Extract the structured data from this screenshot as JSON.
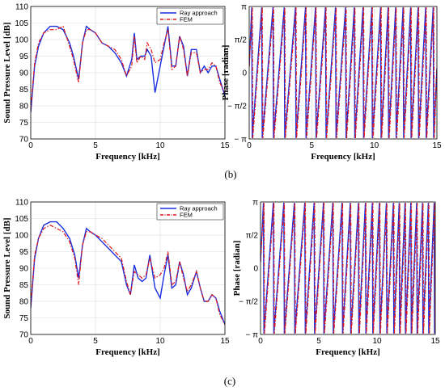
{
  "captions": [
    "(b)",
    "(c)"
  ],
  "colors": {
    "ray": "#1a2fe0",
    "fem": "#e0161a"
  },
  "chart_data": [
    {
      "type": "line",
      "xlabel": "Frequency [kHz]",
      "ylabel": "Sound Pressure Level [dB]",
      "xlim": [
        0,
        15
      ],
      "ylim": [
        70,
        110
      ],
      "xticks": [
        0,
        5,
        10,
        15
      ],
      "yticks": [
        70,
        75,
        80,
        85,
        90,
        95,
        100,
        105,
        110
      ],
      "ytick_labels": [
        "70",
        "75",
        "80",
        "85",
        "90",
        "95",
        "100",
        "105",
        "110"
      ],
      "grid": true,
      "legend": "top-right",
      "series": [
        {
          "name": "Ray approach",
          "style": "solid",
          "x": [
            0,
            0.3,
            0.6,
            1,
            1.5,
            2,
            2.5,
            3,
            3.3,
            3.7,
            4,
            4.3,
            4.6,
            5,
            5.5,
            6,
            6.5,
            7,
            7.4,
            7.8,
            8,
            8.2,
            8.5,
            8.8,
            9,
            9.3,
            9.6,
            10,
            10.3,
            10.6,
            10.9,
            11.2,
            11.5,
            11.8,
            12.1,
            12.4,
            12.8,
            13.1,
            13.4,
            13.7,
            14,
            14.3,
            14.6,
            15
          ],
          "y": [
            78,
            92,
            98,
            102,
            104,
            104,
            103,
            99,
            95,
            88,
            99,
            104,
            103,
            102,
            99,
            98,
            96,
            93,
            89,
            94,
            102,
            94,
            95,
            95,
            97,
            95,
            84,
            92,
            98,
            104,
            92,
            92,
            101,
            98,
            89,
            97,
            97,
            90,
            92,
            90,
            92,
            92,
            88,
            83
          ]
        },
        {
          "name": "FEM",
          "style": "dashdot",
          "x": [
            0,
            0.3,
            0.6,
            1,
            1.5,
            2,
            2.5,
            3,
            3.3,
            3.7,
            4,
            4.3,
            4.6,
            5,
            5.5,
            6,
            6.5,
            7,
            7.4,
            7.8,
            8,
            8.2,
            8.5,
            8.8,
            9,
            9.3,
            9.6,
            10,
            10.3,
            10.6,
            10.9,
            11.2,
            11.5,
            11.8,
            12.1,
            12.4,
            12.8,
            13.1,
            13.4,
            13.7,
            14,
            14.3,
            14.6,
            15
          ],
          "y": [
            79,
            93,
            99,
            102,
            103,
            103,
            104,
            98,
            94,
            87,
            99,
            103,
            103,
            102,
            99,
            98,
            97,
            94,
            89,
            92,
            101,
            93,
            95,
            94,
            99,
            97,
            93,
            94,
            99,
            103,
            91,
            92,
            101,
            97,
            89,
            96,
            96,
            90,
            91,
            91,
            93,
            92,
            87,
            84
          ]
        }
      ]
    },
    {
      "type": "line",
      "xlabel": "Frequency [kHz]",
      "ylabel": "Phase [radian]",
      "xlim": [
        0,
        15
      ],
      "ylim": [
        -3.1416,
        3.1416
      ],
      "xticks": [
        0,
        5,
        10,
        15
      ],
      "yticks": [
        -3.1416,
        -1.5708,
        0,
        1.5708,
        3.1416
      ],
      "ytick_labels": [
        "− π",
        "− π/2",
        "0",
        "π/2",
        "π"
      ],
      "grid": true,
      "legend": "none",
      "series": [
        {
          "name": "Ray approach",
          "style": "solid",
          "wrap_x": [
            0.2,
            1.0,
            1.9,
            2.8,
            3.7,
            4.5,
            5.3,
            6.1,
            6.9,
            7.7,
            8.4,
            9.1,
            9.8,
            10.5,
            11.1,
            11.7,
            12.3,
            12.9,
            13.5,
            14.1,
            14.7
          ]
        },
        {
          "name": "FEM",
          "style": "dashdot",
          "wrap_x": [
            0.25,
            1.05,
            1.95,
            2.85,
            3.75,
            4.55,
            5.35,
            6.15,
            6.95,
            7.75,
            8.45,
            9.15,
            9.85,
            10.55,
            11.15,
            11.75,
            12.35,
            12.95,
            13.55,
            14.15,
            14.75
          ]
        }
      ]
    },
    {
      "type": "line",
      "xlabel": "Frequency [kHz]",
      "ylabel": "Sound Pressure Level [dB]",
      "xlim": [
        0,
        15
      ],
      "ylim": [
        70,
        110
      ],
      "xticks": [
        0,
        5,
        10,
        15
      ],
      "yticks": [
        70,
        75,
        80,
        85,
        90,
        95,
        100,
        105,
        110
      ],
      "ytick_labels": [
        "70",
        "75",
        "80",
        "85",
        "90",
        "95",
        "100",
        "105",
        "110"
      ],
      "grid": true,
      "legend": "top-right",
      "series": [
        {
          "name": "Ray approach",
          "style": "solid",
          "x": [
            0,
            0.3,
            0.6,
            1,
            1.5,
            2,
            2.5,
            3,
            3.4,
            3.7,
            4,
            4.3,
            4.6,
            5,
            5.5,
            6,
            6.5,
            7,
            7.4,
            7.7,
            8,
            8.3,
            8.6,
            8.9,
            9.2,
            9.6,
            10,
            10.3,
            10.6,
            10.9,
            11.2,
            11.5,
            11.8,
            12.1,
            12.4,
            12.8,
            13.1,
            13.4,
            13.7,
            14,
            14.3,
            14.6,
            15
          ],
          "y": [
            78,
            93,
            99,
            103,
            104,
            104,
            102,
            99,
            94,
            87,
            97,
            102,
            101,
            100,
            98,
            96,
            94,
            92,
            85,
            82,
            91,
            87,
            86,
            87,
            94,
            84,
            81,
            88,
            94,
            84,
            85,
            92,
            88,
            82,
            84,
            89,
            84,
            80,
            80,
            82,
            81,
            77,
            73
          ]
        },
        {
          "name": "FEM",
          "style": "dashdot",
          "x": [
            0,
            0.3,
            0.6,
            1,
            1.5,
            2,
            2.5,
            3,
            3.4,
            3.7,
            4,
            4.3,
            4.6,
            5,
            5.5,
            6,
            6.5,
            7,
            7.4,
            7.7,
            8,
            8.3,
            8.6,
            8.9,
            9.2,
            9.6,
            10,
            10.3,
            10.6,
            10.9,
            11.2,
            11.5,
            11.8,
            12.1,
            12.4,
            12.8,
            13.1,
            13.4,
            13.7,
            14,
            14.3,
            14.6,
            15
          ],
          "y": [
            79,
            94,
            99,
            102,
            103,
            102,
            101,
            98,
            93,
            85,
            97,
            101,
            101,
            100,
            99,
            97,
            95,
            93,
            86,
            82,
            89,
            88,
            87,
            88,
            93,
            87,
            88,
            90,
            95,
            85,
            86,
            92,
            87,
            83,
            85,
            89,
            84,
            80,
            80,
            82,
            81,
            76,
            73
          ]
        }
      ]
    },
    {
      "type": "line",
      "xlabel": "Frequency [kHz]",
      "ylabel": "Phase [radian]",
      "xlim": [
        0,
        15
      ],
      "ylim": [
        -3.1416,
        3.1416
      ],
      "xticks": [
        0,
        5,
        10,
        15
      ],
      "yticks": [
        -3.1416,
        -1.5708,
        0,
        1.5708,
        3.1416
      ],
      "ytick_labels": [
        "− π",
        "− π/2",
        "0",
        "π/2",
        "π"
      ],
      "grid": true,
      "legend": "none",
      "series": [
        {
          "name": "Ray approach",
          "style": "solid",
          "wrap_x": [
            0.25,
            1.1,
            2.0,
            2.9,
            3.8,
            4.6,
            5.4,
            6.2,
            7.0,
            7.7,
            8.4,
            9.0,
            9.6,
            10.2,
            10.8,
            11.4,
            11.9,
            12.4,
            12.9,
            13.4,
            13.9,
            14.4,
            14.9
          ]
        },
        {
          "name": "FEM",
          "style": "dashdot",
          "wrap_x": [
            0.3,
            1.15,
            2.05,
            2.95,
            3.85,
            4.65,
            5.45,
            6.25,
            7.05,
            7.75,
            8.45,
            9.05,
            9.65,
            10.25,
            10.85,
            11.45,
            11.95,
            12.45,
            12.95,
            13.45,
            13.95,
            14.45,
            14.95
          ]
        }
      ]
    }
  ]
}
